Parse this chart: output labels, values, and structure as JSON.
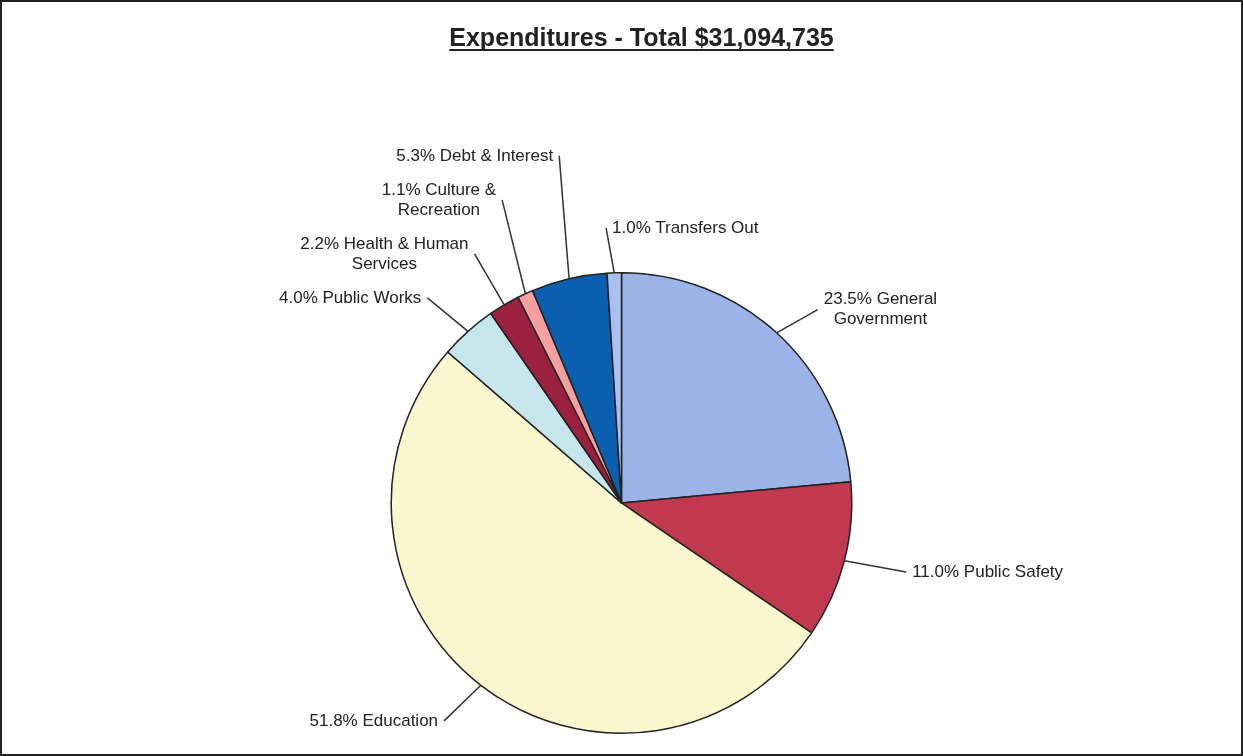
{
  "chart_data": {
    "type": "pie",
    "title": "Expenditures - Total $31,094,735",
    "categories": [
      "General Government",
      "Public Safety",
      "Education",
      "Public Works",
      "Health & Human Services",
      "Culture & Recreation",
      "Debt & Interest",
      "Transfers Out"
    ],
    "values": [
      23.5,
      11.0,
      51.8,
      4.0,
      2.2,
      1.1,
      5.3,
      1.0
    ],
    "value_labels": [
      "23.5%",
      "11.0%",
      "51.8%",
      "4.0%",
      "2.2%",
      "1.1%",
      "5.3%",
      "1.0%"
    ],
    "colors": [
      "#9bb3e6",
      "#c0394f",
      "#fbf8d0",
      "#c6e6ec",
      "#9c2040",
      "#f5a0a0",
      "#0b5fb0",
      "#a8bff0"
    ],
    "legend": false
  }
}
